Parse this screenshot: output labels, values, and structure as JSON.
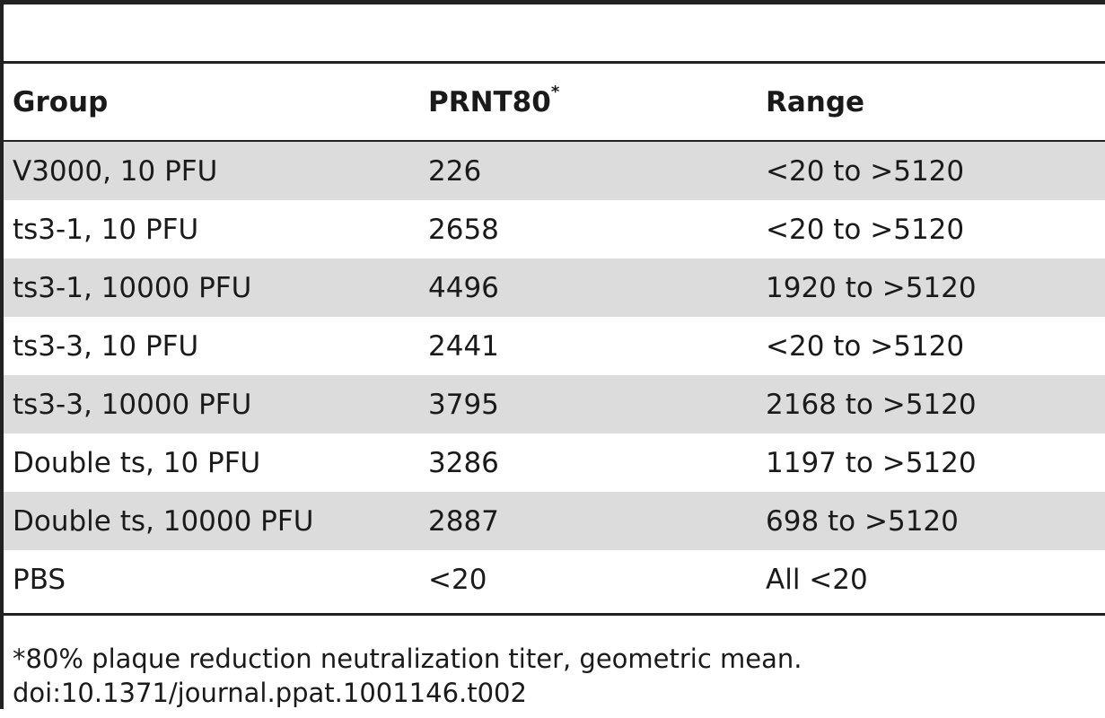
{
  "table": {
    "headers": {
      "group": "Group",
      "prnt": "PRNT80",
      "prnt_marker": "*",
      "range": "Range"
    },
    "rows": [
      {
        "group": "V3000, 10 PFU",
        "prnt": "226",
        "range": "<20 to >5120"
      },
      {
        "group": "ts3-1, 10 PFU",
        "prnt": "2658",
        "range": "<20 to >5120"
      },
      {
        "group": "ts3-1, 10000 PFU",
        "prnt": "4496",
        "range": "1920 to >5120"
      },
      {
        "group": "ts3-3, 10 PFU",
        "prnt": "2441",
        "range": "<20 to >5120"
      },
      {
        "group": "ts3-3, 10000 PFU",
        "prnt": "3795",
        "range": "2168 to >5120"
      },
      {
        "group": "Double ts, 10 PFU",
        "prnt": "3286",
        "range": "1197 to >5120"
      },
      {
        "group": "Double ts, 10000 PFU",
        "prnt": "2887",
        "range": "698 to >5120"
      },
      {
        "group": "PBS",
        "prnt": "<20",
        "range": "All <20"
      }
    ]
  },
  "footnotes": {
    "note": "*80% plaque reduction neutralization titer, geometric mean.",
    "doi": "doi:10.1371/journal.ppat.1001146.t002"
  }
}
